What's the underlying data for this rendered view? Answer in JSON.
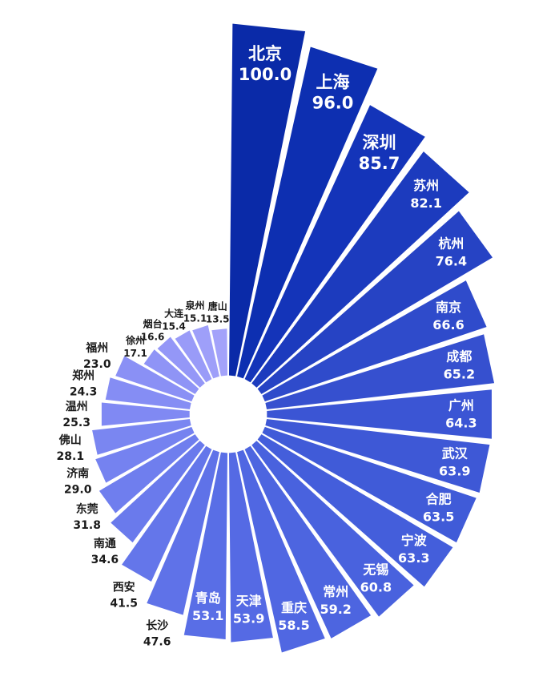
{
  "chart_data": {
    "type": "bar",
    "layout": "radial",
    "title": "",
    "value_range": [
      0,
      100
    ],
    "series": [
      {
        "categories": [
          "北京",
          "上海",
          "深圳",
          "苏州",
          "杭州",
          "南京",
          "成都",
          "广州",
          "武汉",
          "合肥",
          "宁波",
          "无锡",
          "常州",
          "重庆",
          "天津",
          "青岛",
          "长沙",
          "西安",
          "南通",
          "东莞",
          "济南",
          "佛山",
          "温州",
          "郑州",
          "福州",
          "徐州",
          "烟台",
          "大连",
          "泉州",
          "唐山"
        ],
        "values": [
          100.0,
          96.0,
          85.7,
          82.1,
          76.4,
          66.6,
          65.2,
          64.3,
          63.9,
          63.5,
          63.3,
          60.8,
          59.2,
          58.5,
          53.9,
          53.1,
          47.6,
          41.5,
          34.6,
          31.8,
          29.0,
          28.1,
          25.3,
          24.3,
          23.0,
          17.1,
          16.6,
          15.4,
          15.1,
          13.5
        ],
        "value_labels": [
          "100.0",
          "96.0",
          "85.7",
          "82.1",
          "76.4",
          "66.6",
          "65.2",
          "64.3",
          "63.9",
          "63.5",
          "63.3",
          "60.8",
          "59.2",
          "58.5",
          "53.9",
          "53.1",
          "47.6",
          "41.5",
          "34.6",
          "31.8",
          "29.0",
          "28.1",
          "25.3",
          "24.3",
          "23.0",
          "17.1",
          "16.6",
          "15.4",
          "15.1",
          "13.5"
        ]
      }
    ],
    "colors": [
      "#0a2aa8",
      "#0d2fb1",
      "#1434b9",
      "#1c3bbe",
      "#2643c4",
      "#2f4bcb",
      "#3650cf",
      "#3b55d4",
      "#3e58d6",
      "#405bd8",
      "#445edb",
      "#4962de",
      "#4d65e0",
      "#5067e2",
      "#556ae4",
      "#596ee6",
      "#5f72e8",
      "#6476ea",
      "#6a7aec",
      "#6f7eee",
      "#7582f0",
      "#7a86f1",
      "#8089f3",
      "#858df4",
      "#8a90f5",
      "#8f94f6",
      "#9497f7",
      "#999bf8",
      "#9e9ff9",
      "#a3a2fa"
    ]
  }
}
